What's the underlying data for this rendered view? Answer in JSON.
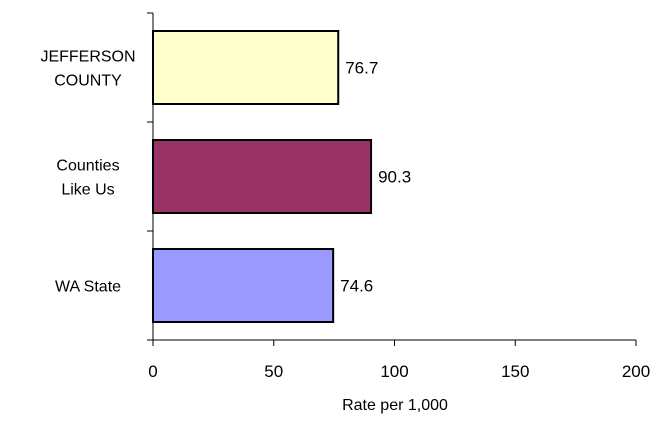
{
  "chart_data": {
    "type": "bar",
    "orientation": "horizontal",
    "categories": [
      [
        "JEFFERSON",
        "COUNTY"
      ],
      [
        "Counties",
        "Like Us"
      ],
      [
        "WA State"
      ]
    ],
    "values": [
      76.7,
      90.3,
      74.6
    ],
    "data_labels": [
      "76.7",
      "90.3",
      "74.6"
    ],
    "colors": [
      "#FFFFCC",
      "#993366",
      "#9999FF"
    ],
    "xlabel": "Rate per 1,000",
    "ylabel": "",
    "title": "",
    "xlim": [
      0,
      200
    ],
    "xticks": [
      0,
      50,
      100,
      150,
      200
    ],
    "grid": false,
    "legend": "none"
  }
}
